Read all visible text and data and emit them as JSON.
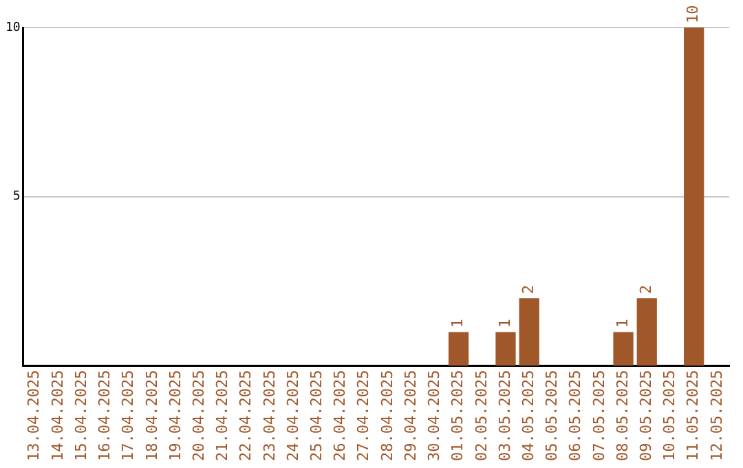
{
  "chart_data": {
    "type": "bar",
    "categories": [
      "13.04.2025",
      "14.04.2025",
      "15.04.2025",
      "16.04.2025",
      "17.04.2025",
      "18.04.2025",
      "19.04.2025",
      "20.04.2025",
      "21.04.2025",
      "22.04.2025",
      "23.04.2025",
      "24.04.2025",
      "25.04.2025",
      "26.04.2025",
      "27.04.2025",
      "28.04.2025",
      "29.04.2025",
      "30.04.2025",
      "01.05.2025",
      "02.05.2025",
      "03.05.2025",
      "04.05.2025",
      "05.05.2025",
      "06.05.2025",
      "07.05.2025",
      "08.05.2025",
      "09.05.2025",
      "10.05.2025",
      "11.05.2025",
      "12.05.2025"
    ],
    "values": [
      0,
      0,
      0,
      0,
      0,
      0,
      0,
      0,
      0,
      0,
      0,
      0,
      0,
      0,
      0,
      0,
      0,
      0,
      1,
      0,
      1,
      2,
      0,
      0,
      0,
      1,
      2,
      0,
      10,
      0
    ],
    "value_labels": [
      null,
      null,
      null,
      null,
      null,
      null,
      null,
      null,
      null,
      null,
      null,
      null,
      null,
      null,
      null,
      null,
      null,
      null,
      "1",
      null,
      "1",
      "2",
      null,
      null,
      null,
      "1",
      "2",
      null,
      "10",
      null
    ],
    "color": "#a0572a",
    "ylim": [
      0,
      10
    ],
    "yticks": [
      5,
      10
    ],
    "grid": "y",
    "legend": false
  }
}
